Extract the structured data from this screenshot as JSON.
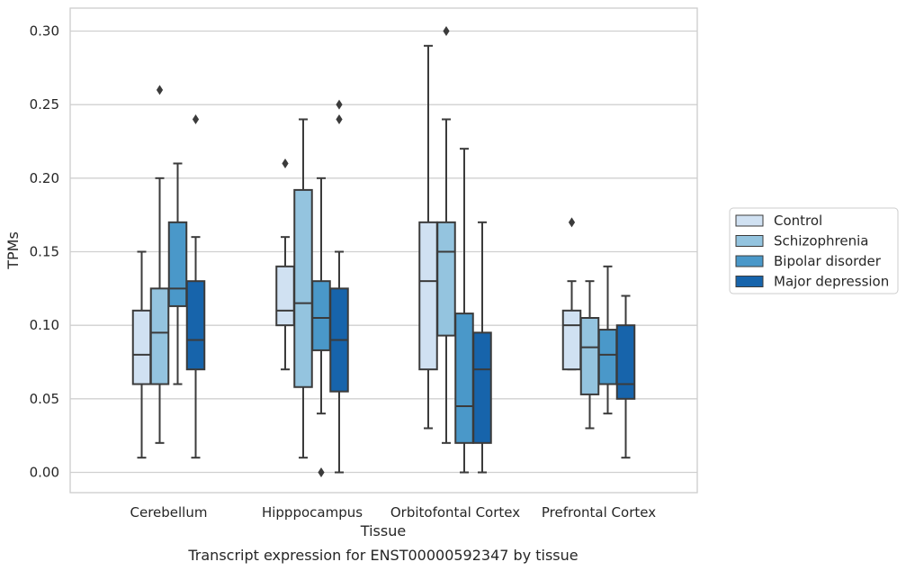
{
  "chart_data": {
    "type": "boxplot",
    "title": "",
    "caption": "Transcript expression for ENST00000592347 by tissue",
    "xlabel": "Tissue",
    "ylabel": "TPMs",
    "ylim": [
      -0.015,
      0.315
    ],
    "yticks": [
      0.0,
      0.05,
      0.1,
      0.15,
      0.2,
      0.25,
      0.3
    ],
    "ytick_labels": [
      "0.00",
      "0.05",
      "0.10",
      "0.15",
      "0.20",
      "0.25",
      "0.30"
    ],
    "grid": "horizontal",
    "legend_position": "right",
    "categories": [
      "Cerebellum",
      "Hipppocampus",
      "Orbitofontal Cortex",
      "Prefrontal Cortex"
    ],
    "series": [
      {
        "name": "Control",
        "color": "#d0e1f2",
        "boxes": [
          {
            "whislo": 0.01,
            "q1": 0.06,
            "med": 0.08,
            "q3": 0.11,
            "whishi": 0.15,
            "fliers": []
          },
          {
            "whislo": 0.07,
            "q1": 0.1,
            "med": 0.11,
            "q3": 0.14,
            "whishi": 0.16,
            "fliers": [
              0.21
            ]
          },
          {
            "whislo": 0.03,
            "q1": 0.07,
            "med": 0.13,
            "q3": 0.17,
            "whishi": 0.29,
            "fliers": []
          },
          {
            "whislo": 0.07,
            "q1": 0.07,
            "med": 0.1,
            "q3": 0.11,
            "whishi": 0.13,
            "fliers": [
              0.17
            ]
          }
        ]
      },
      {
        "name": "Schizophrenia",
        "color": "#94c4df",
        "boxes": [
          {
            "whislo": 0.02,
            "q1": 0.06,
            "med": 0.095,
            "q3": 0.125,
            "whishi": 0.2,
            "fliers": [
              0.26
            ]
          },
          {
            "whislo": 0.01,
            "q1": 0.058,
            "med": 0.115,
            "q3": 0.192,
            "whishi": 0.24,
            "fliers": []
          },
          {
            "whislo": 0.02,
            "q1": 0.093,
            "med": 0.15,
            "q3": 0.17,
            "whishi": 0.24,
            "fliers": [
              0.3
            ]
          },
          {
            "whislo": 0.03,
            "q1": 0.053,
            "med": 0.085,
            "q3": 0.105,
            "whishi": 0.13,
            "fliers": []
          }
        ]
      },
      {
        "name": "Bipolar disorder",
        "color": "#4a98c9",
        "boxes": [
          {
            "whislo": 0.06,
            "q1": 0.113,
            "med": 0.125,
            "q3": 0.17,
            "whishi": 0.21,
            "fliers": []
          },
          {
            "whislo": 0.04,
            "q1": 0.083,
            "med": 0.105,
            "q3": 0.13,
            "whishi": 0.2,
            "fliers": [
              0.0
            ]
          },
          {
            "whislo": 0.0,
            "q1": 0.02,
            "med": 0.045,
            "q3": 0.108,
            "whishi": 0.22,
            "fliers": []
          },
          {
            "whislo": 0.04,
            "q1": 0.06,
            "med": 0.08,
            "q3": 0.097,
            "whishi": 0.14,
            "fliers": []
          }
        ]
      },
      {
        "name": "Major depression",
        "color": "#1764ab",
        "boxes": [
          {
            "whislo": 0.01,
            "q1": 0.07,
            "med": 0.09,
            "q3": 0.13,
            "whishi": 0.16,
            "fliers": [
              0.24
            ]
          },
          {
            "whislo": 0.0,
            "q1": 0.055,
            "med": 0.09,
            "q3": 0.125,
            "whishi": 0.15,
            "fliers": [
              0.24,
              0.25
            ]
          },
          {
            "whislo": 0.0,
            "q1": 0.02,
            "med": 0.07,
            "q3": 0.095,
            "whishi": 0.17,
            "fliers": []
          },
          {
            "whislo": 0.01,
            "q1": 0.05,
            "med": 0.06,
            "q3": 0.1,
            "whishi": 0.12,
            "fliers": []
          }
        ]
      }
    ],
    "colors": {
      "grid": "#d0d0d0",
      "frame": "#cccccc",
      "line": "#3b3b3b",
      "text": "#262626"
    }
  }
}
